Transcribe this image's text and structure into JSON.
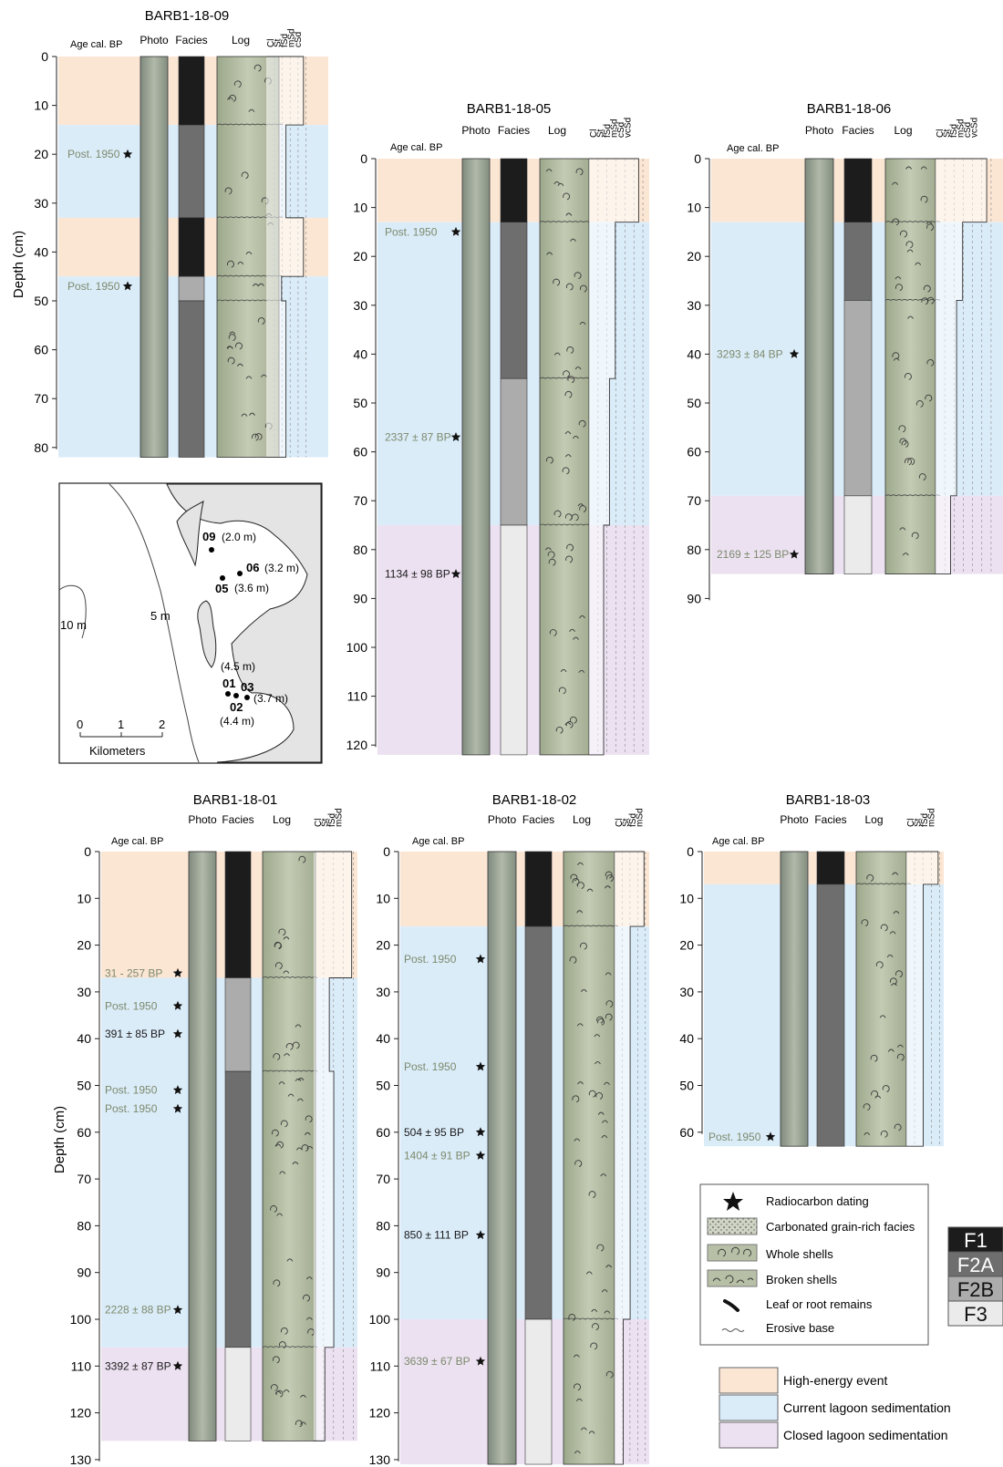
{
  "colors": {
    "high_energy": "#fbe6d4",
    "current_lagoon": "#dbecf9",
    "closed_lagoon": "#ece1f1",
    "facies_F1": "#1c1c1c",
    "facies_F2A": "#6e6e6e",
    "facies_F2B": "#acacac",
    "facies_F3": "#ebebeb",
    "log_fill": "#b7c0a6",
    "photo_fill": "#9ea79a",
    "age_text_postbomb": "#7c8a6c",
    "map_land": "#e4e4e4"
  },
  "labels": {
    "age_col": "Age cal. BP",
    "age_col_alt": "Age  cal. BP",
    "photo": "Photo",
    "facies": "Facies",
    "log": "Log",
    "depth_axis": "Depth (cm)"
  },
  "cores": [
    {
      "id": "c09",
      "title": "BARB1-18-09",
      "grain": [
        "Cl",
        "St",
        "fSd",
        "mSd",
        "cSd"
      ],
      "max_depth": 80,
      "bottom": 82,
      "zones": [
        {
          "type": "high_energy",
          "top": 0,
          "bottom": 14
        },
        {
          "type": "current_lagoon",
          "top": 14,
          "bottom": 33
        },
        {
          "type": "high_energy",
          "top": 33,
          "bottom": 45
        },
        {
          "type": "current_lagoon",
          "top": 45,
          "bottom": 82
        }
      ],
      "facies": [
        {
          "f": "F1",
          "top": 0,
          "bottom": 14
        },
        {
          "f": "F2A",
          "top": 14,
          "bottom": 33
        },
        {
          "f": "F1",
          "top": 33,
          "bottom": 45
        },
        {
          "f": "F2B",
          "top": 45,
          "bottom": 50
        },
        {
          "f": "F2A",
          "top": 50,
          "bottom": 82
        }
      ],
      "ages": [
        {
          "depth": 20,
          "text": "Post. 1950",
          "postbomb": true
        },
        {
          "depth": 47,
          "text": "Post. 1950",
          "postbomb": true
        }
      ]
    },
    {
      "id": "c05",
      "title": "BARB1-18-05",
      "grain": [
        "Cl",
        "St",
        "fSd",
        "mSd",
        "cSd",
        "vcSd"
      ],
      "max_depth": 120,
      "bottom": 122,
      "zones": [
        {
          "type": "high_energy",
          "top": 0,
          "bottom": 13
        },
        {
          "type": "current_lagoon",
          "top": 13,
          "bottom": 75
        },
        {
          "type": "closed_lagoon",
          "top": 75,
          "bottom": 122
        }
      ],
      "facies": [
        {
          "f": "F1",
          "top": 0,
          "bottom": 13
        },
        {
          "f": "F2A",
          "top": 13,
          "bottom": 45
        },
        {
          "f": "F2B",
          "top": 45,
          "bottom": 75
        },
        {
          "f": "F3",
          "top": 75,
          "bottom": 122
        }
      ],
      "ages": [
        {
          "depth": 15,
          "text": "Post. 1950",
          "postbomb": true
        },
        {
          "depth": 57,
          "text": "2337 ± 87 BP",
          "postbomb": true
        },
        {
          "depth": 85,
          "text": "1134 ± 98 BP",
          "postbomb": false
        }
      ]
    },
    {
      "id": "c06",
      "title": "BARB1-18-06",
      "grain": [
        "Cl",
        "St",
        "fSd",
        "mSd",
        "cSd",
        "vcSd"
      ],
      "max_depth": 90,
      "bottom": 85,
      "zones": [
        {
          "type": "high_energy",
          "top": 0,
          "bottom": 13
        },
        {
          "type": "current_lagoon",
          "top": 13,
          "bottom": 69
        },
        {
          "type": "closed_lagoon",
          "top": 69,
          "bottom": 85
        }
      ],
      "facies": [
        {
          "f": "F1",
          "top": 0,
          "bottom": 13
        },
        {
          "f": "F2A",
          "top": 13,
          "bottom": 29
        },
        {
          "f": "F2B",
          "top": 29,
          "bottom": 69
        },
        {
          "f": "F3",
          "top": 69,
          "bottom": 85
        }
      ],
      "ages": [
        {
          "depth": 40,
          "text": "3293 ± 84 BP",
          "postbomb": true
        },
        {
          "depth": 81,
          "text": "2169 ± 125 BP",
          "postbomb": true
        }
      ]
    },
    {
      "id": "c01",
      "title": "BARB1-18-01",
      "grain": [
        "Cl",
        "St",
        "fSd",
        "mSd"
      ],
      "max_depth": 130,
      "bottom": 126,
      "zones": [
        {
          "type": "high_energy",
          "top": 0,
          "bottom": 27
        },
        {
          "type": "current_lagoon",
          "top": 27,
          "bottom": 106
        },
        {
          "type": "closed_lagoon",
          "top": 106,
          "bottom": 126
        }
      ],
      "facies": [
        {
          "f": "F1",
          "top": 0,
          "bottom": 27
        },
        {
          "f": "F2B",
          "top": 27,
          "bottom": 47
        },
        {
          "f": "F2A",
          "top": 47,
          "bottom": 106
        },
        {
          "f": "F3",
          "top": 106,
          "bottom": 126
        }
      ],
      "ages": [
        {
          "depth": 26,
          "text": "31 - 257 BP",
          "postbomb": true
        },
        {
          "depth": 33,
          "text": "Post. 1950",
          "postbomb": true
        },
        {
          "depth": 39,
          "text": "391 ± 85 BP",
          "postbomb": false
        },
        {
          "depth": 51,
          "text": "Post. 1950",
          "postbomb": true
        },
        {
          "depth": 55,
          "text": "Post. 1950",
          "postbomb": true
        },
        {
          "depth": 98,
          "text": "2228 ± 88 BP",
          "postbomb": true
        },
        {
          "depth": 110,
          "text": "3392 ± 87 BP",
          "postbomb": false
        }
      ]
    },
    {
      "id": "c02",
      "title": "BARB1-18-02",
      "grain": [
        "Cl",
        "St",
        "fSd",
        "mSd"
      ],
      "max_depth": 130,
      "bottom": 131,
      "zones": [
        {
          "type": "high_energy",
          "top": 0,
          "bottom": 16
        },
        {
          "type": "current_lagoon",
          "top": 16,
          "bottom": 100
        },
        {
          "type": "closed_lagoon",
          "top": 100,
          "bottom": 131
        }
      ],
      "facies": [
        {
          "f": "F1",
          "top": 0,
          "bottom": 16
        },
        {
          "f": "F2A",
          "top": 16,
          "bottom": 100
        },
        {
          "f": "F3",
          "top": 100,
          "bottom": 131
        }
      ],
      "ages": [
        {
          "depth": 23,
          "text": "Post. 1950",
          "postbomb": true
        },
        {
          "depth": 46,
          "text": "Post. 1950",
          "postbomb": true
        },
        {
          "depth": 60,
          "text": "504 ± 95 BP",
          "postbomb": false
        },
        {
          "depth": 65,
          "text": "1404 ± 91 BP",
          "postbomb": true
        },
        {
          "depth": 82,
          "text": "850 ± 111 BP",
          "postbomb": false
        },
        {
          "depth": 109,
          "text": "3639 ± 67 BP",
          "postbomb": true
        }
      ]
    },
    {
      "id": "c03",
      "title": "BARB1-18-03",
      "grain": [
        "Cl",
        "St",
        "fSd",
        "mSd"
      ],
      "max_depth": 60,
      "bottom": 63,
      "zones": [
        {
          "type": "high_energy",
          "top": 0,
          "bottom": 7
        },
        {
          "type": "current_lagoon",
          "top": 7,
          "bottom": 63
        }
      ],
      "facies": [
        {
          "f": "F1",
          "top": 0,
          "bottom": 7
        },
        {
          "f": "F2A",
          "top": 7,
          "bottom": 63
        }
      ],
      "ages": [
        {
          "depth": 61,
          "text": "Post. 1950",
          "postbomb": true
        }
      ]
    }
  ],
  "map": {
    "sites": [
      {
        "id": "09",
        "depth": "(2.0 m)"
      },
      {
        "id": "06",
        "depth": "(3.2 m)"
      },
      {
        "id": "05",
        "depth": "(3.6 m)"
      },
      {
        "id": "01",
        "depth": "(4.5 m)"
      },
      {
        "id": "03",
        "depth": "(3.7 m)"
      },
      {
        "id": "02",
        "depth": "(4.4 m)"
      }
    ],
    "contours": [
      "10 m",
      "5 m"
    ],
    "scale": {
      "ticks": [
        "0",
        "1",
        "2"
      ],
      "unit": "Kilometers"
    }
  },
  "legend": {
    "symbols": [
      {
        "icon": "star",
        "label": "Radiocarbon dating"
      },
      {
        "icon": "dots",
        "label": "Carbonated grain-rich facies"
      },
      {
        "icon": "whole-shells",
        "label": "Whole shells"
      },
      {
        "icon": "broken-shells",
        "label": "Broken shells"
      },
      {
        "icon": "leaf",
        "label": "Leaf or root remains"
      },
      {
        "icon": "wave",
        "label": "Erosive base"
      }
    ],
    "facies": [
      "F1",
      "F2A",
      "F2B",
      "F3"
    ],
    "environments": [
      {
        "type": "high_energy",
        "label": "High-energy event"
      },
      {
        "type": "current_lagoon",
        "label": "Current lagoon sedimentation"
      },
      {
        "type": "closed_lagoon",
        "label": "Closed lagoon sedimentation"
      }
    ]
  }
}
